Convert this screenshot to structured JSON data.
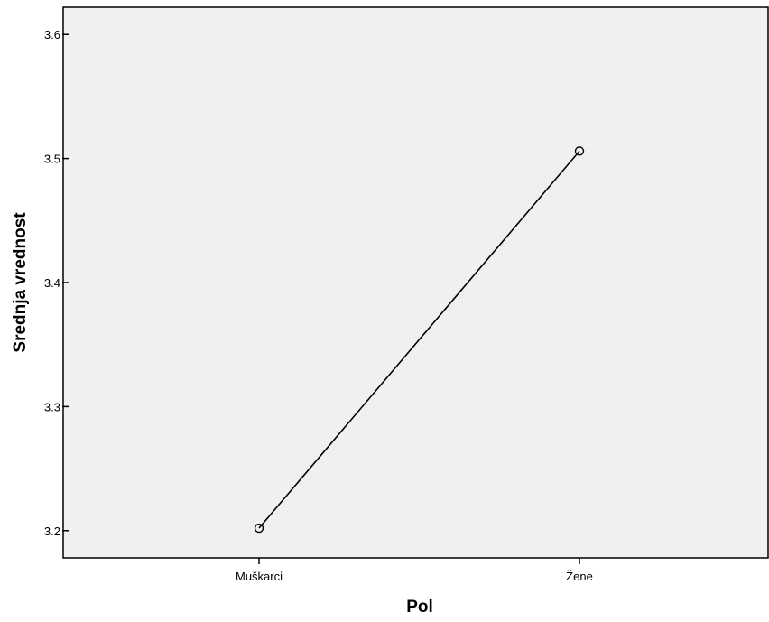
{
  "chart_data": {
    "type": "line",
    "xlabel": "Pol",
    "ylabel": "Srednja vrednost",
    "categories": [
      "Muškarci",
      "Žene"
    ],
    "series": [
      {
        "values": [
          3.202,
          3.506
        ]
      }
    ],
    "ylim": [
      3.178,
      3.622
    ],
    "yticks": [
      3.2,
      3.3,
      3.4,
      3.5,
      3.6
    ],
    "grid": false,
    "marker": "open-circle",
    "colors": {
      "plot_background": "#f0f0f0",
      "line": "#000000",
      "axis": "#000000"
    }
  }
}
